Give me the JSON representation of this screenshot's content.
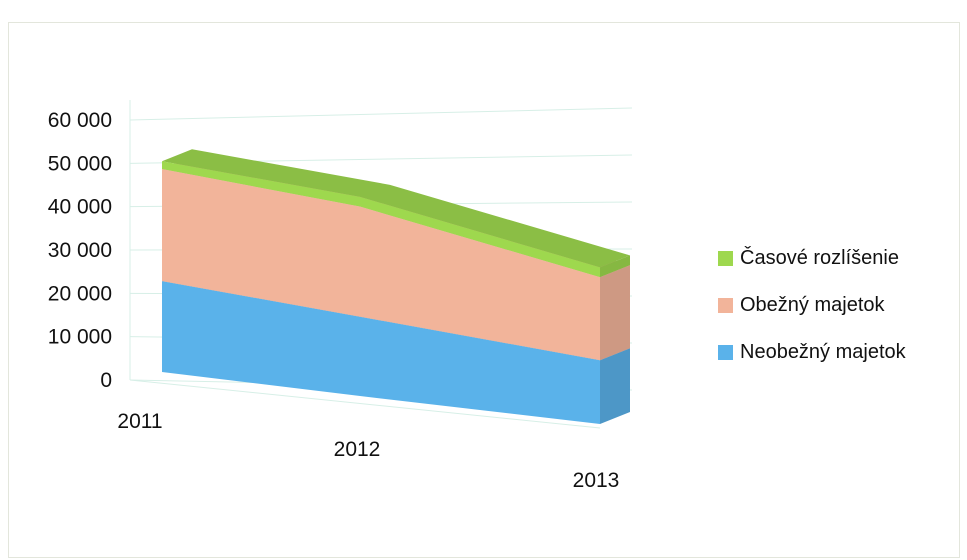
{
  "chart_data": {
    "type": "area",
    "x": [
      "2011",
      "2012",
      "2013"
    ],
    "ylim": [
      0,
      60000
    ],
    "yticks": [
      "0",
      "10 000",
      "20 000",
      "30 000",
      "40 000",
      "50 000",
      "60 000"
    ],
    "stacked": true,
    "three_d": true,
    "grid": true,
    "legend_position": "right",
    "series": [
      {
        "name": "Neobežný majetok",
        "values": [
          23500,
          20500,
          16500
        ],
        "color": "#5ab2ea"
      },
      {
        "name": "Obežný majetok",
        "values": [
          29000,
          28500,
          21500
        ],
        "color": "#f2b49a"
      },
      {
        "name": "Časové rozlíšenie",
        "values": [
          2000,
          2500,
          2500
        ],
        "color": "#9ed84e"
      }
    ],
    "legend_order": [
      "Časové rozlíšenie",
      "Obežný majetok",
      "Neobežný majetok"
    ]
  }
}
